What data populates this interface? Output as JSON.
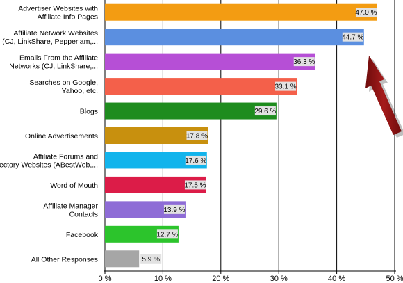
{
  "chart_data": {
    "type": "bar",
    "orientation": "horizontal",
    "categories": [
      [
        "Advertiser Websites with",
        "Affiliate Info Pages"
      ],
      [
        "Affiliate Network Websites",
        "(CJ, LinkShare, Pepperjam,..."
      ],
      [
        "Emails From the Affiliate",
        "Networks (CJ, LinkShare,..."
      ],
      [
        "Searches on Google,",
        "Yahoo, etc."
      ],
      [
        "Blogs"
      ],
      [
        "Online Advertisements"
      ],
      [
        "Affiliate Forums and",
        "Directory Websites (ABestWeb,..."
      ],
      [
        "Word of Mouth"
      ],
      [
        "Affiliate Manager",
        "Contacts"
      ],
      [
        "Facebook"
      ],
      [
        "All Other Responses"
      ]
    ],
    "values": [
      47.0,
      44.7,
      36.3,
      33.1,
      29.6,
      17.8,
      17.6,
      17.5,
      13.9,
      12.7,
      5.9
    ],
    "value_labels": [
      "47.0 %",
      "44.7 %",
      "36.3 %",
      "33.1 %",
      "29.6 %",
      "17.8 %",
      "17.6 %",
      "17.5 %",
      "13.9 %",
      "12.7 %",
      "5.9 %"
    ],
    "colors": [
      "#f39c12",
      "#5b8fe0",
      "#b64fd6",
      "#f4604a",
      "#1e8c1e",
      "#c8900e",
      "#12b4ec",
      "#dc1c48",
      "#8e6cd6",
      "#2cc42c",
      "#a6a6a6"
    ],
    "xticks": [
      "0 %",
      "10 %",
      "20 %",
      "30 %",
      "40 %",
      "50 %"
    ],
    "xlim": [
      0,
      50
    ],
    "grid": true,
    "annotation": {
      "type": "arrow",
      "color": "#8b1010",
      "points_to_category_index": 1
    }
  }
}
